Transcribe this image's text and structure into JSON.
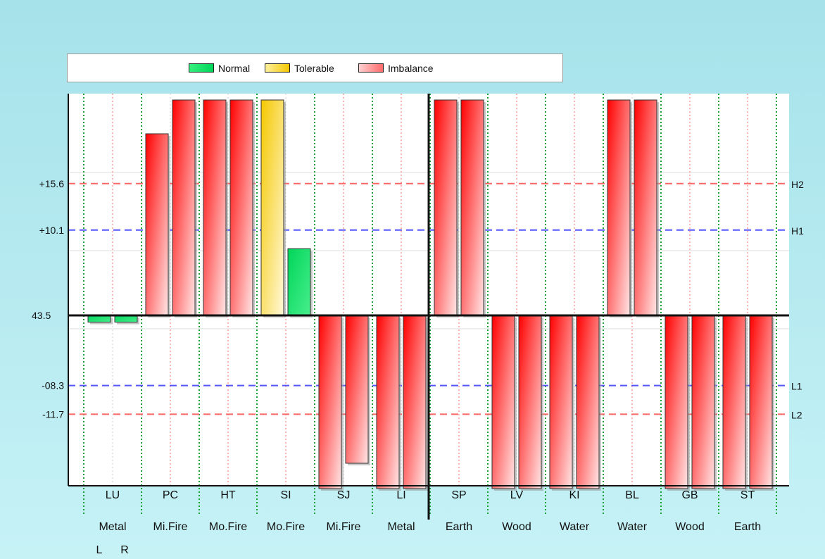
{
  "legend": {
    "normal_label": "Normal",
    "tolerable_label": "Tolerable",
    "imbalance_label": "Imbalance"
  },
  "colors": {
    "normal": "#00d65a",
    "tolerable": "#f5c800",
    "imbalance": "#ff0000",
    "h2_l2_line": "#ff6666",
    "h1_l1_line": "#5555ff"
  },
  "chart_data": {
    "type": "bar",
    "title": "",
    "baseline_label": "43.5",
    "y_visible_range": [
      -20.5,
      25.5
    ],
    "threshold_lines": [
      {
        "name": "H2",
        "value": 15.6,
        "label": "+15.6",
        "color": "#ff6666"
      },
      {
        "name": "H1",
        "value": 10.1,
        "label": "+10.1",
        "color": "#5555ff"
      },
      {
        "name": "L1",
        "value": -8.3,
        "label": "-08.3",
        "color": "#5555ff"
      },
      {
        "name": "L2",
        "value": -11.7,
        "label": "-11.7",
        "color": "#ff6666"
      }
    ],
    "categories": [
      "LU",
      "PC",
      "HT",
      "SI",
      "SJ",
      "LI",
      "SP",
      "LV",
      "KI",
      "BL",
      "GB",
      "ST"
    ],
    "elements": [
      "Metal",
      "Mi.Fire",
      "Mo.Fire",
      "Mo.Fire",
      "Mi.Fire",
      "Metal",
      "Earth",
      "Wood",
      "Water",
      "Water",
      "Wood",
      "Earth"
    ],
    "side_labels": [
      "L",
      "R"
    ],
    "series": [
      {
        "name": "L",
        "values": [
          -0.8,
          21.5,
          25.5,
          25.5,
          -20.5,
          -20.5,
          25.5,
          -20.5,
          -20.5,
          25.5,
          -20.5,
          -20.5
        ],
        "status": [
          "normal",
          "imbalance",
          "imbalance",
          "tolerable",
          "imbalance",
          "imbalance",
          "imbalance",
          "imbalance",
          "imbalance",
          "imbalance",
          "imbalance",
          "imbalance"
        ]
      },
      {
        "name": "R",
        "values": [
          -0.8,
          25.5,
          25.5,
          7.9,
          -17.5,
          -20.5,
          25.5,
          -20.5,
          -20.5,
          25.5,
          -20.5,
          -20.5
        ],
        "status": [
          "normal",
          "imbalance",
          "imbalance",
          "normal",
          "imbalance",
          "imbalance",
          "imbalance",
          "imbalance",
          "imbalance",
          "imbalance",
          "imbalance",
          "imbalance"
        ]
      }
    ]
  }
}
